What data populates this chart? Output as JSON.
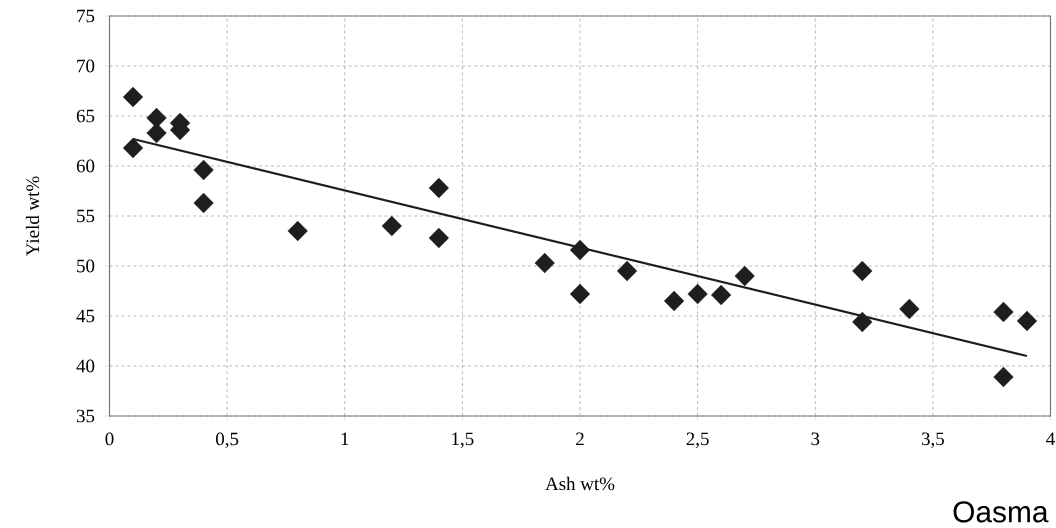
{
  "chart_data": {
    "type": "scatter",
    "xlabel": "Ash wt%",
    "ylabel": "Yield wt%",
    "annotations": [
      "Oasma"
    ],
    "xlim": [
      0,
      4
    ],
    "ylim": [
      35,
      75
    ],
    "xticks": [
      0,
      {
        "value": 0.5,
        "label": "0,5"
      },
      1,
      {
        "value": 1.5,
        "label": "1,5"
      },
      2,
      {
        "value": 2.5,
        "label": "2,5"
      },
      3,
      {
        "value": 3.5,
        "label": "3,5"
      },
      4
    ],
    "yticks": [
      35,
      40,
      45,
      50,
      55,
      60,
      65,
      70,
      75
    ],
    "grid": true,
    "marker": "diamond",
    "series": [
      {
        "color": "#1e1e1e",
        "x": [
          0.1,
          0.1,
          0.2,
          0.2,
          0.3,
          0.3,
          0.4,
          0.4,
          0.8,
          1.2,
          1.4,
          1.4,
          1.85,
          2.0,
          2.0,
          2.2,
          2.4,
          2.5,
          2.6,
          2.7,
          3.2,
          3.2,
          3.4,
          3.8,
          3.8,
          3.9
        ],
        "values": [
          66.9,
          61.8,
          64.8,
          63.3,
          64.3,
          63.6,
          59.6,
          56.3,
          53.5,
          54.0,
          57.8,
          52.8,
          50.3,
          51.6,
          47.2,
          49.5,
          46.5,
          47.2,
          47.1,
          49.0,
          49.5,
          44.4,
          45.7,
          45.4,
          38.9,
          44.5
        ]
      },
      {
        "type": "line",
        "color": "#1e1e1e",
        "marker": "none",
        "line_style": "solid",
        "x": [
          0.1,
          3.9
        ],
        "values": [
          62.7,
          41.0
        ]
      }
    ]
  }
}
